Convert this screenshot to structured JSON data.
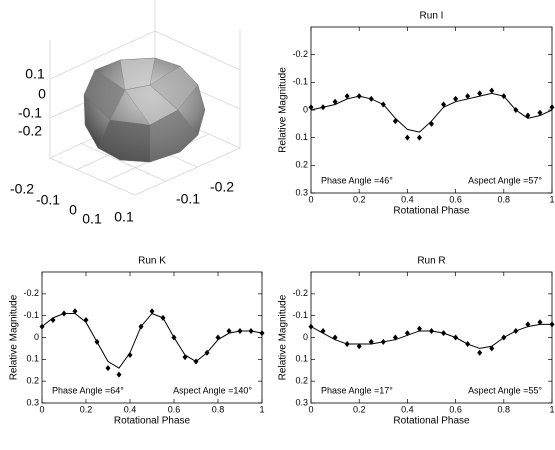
{
  "chart_data": [
    {
      "type": "shape3d",
      "xticks": [
        -0.2,
        -0.1,
        0,
        0.1
      ],
      "yticks": [
        0.1,
        -0.1,
        -0.2
      ],
      "zticks": [
        0.1,
        0,
        -0.1,
        -0.2
      ]
    },
    {
      "type": "lightcurve",
      "title": "Run I",
      "x_label": "Rotational Phase",
      "y_label": "Relative Magnitude",
      "annotations": [
        "Phase Angle =46°",
        "Aspect Angle =57°"
      ],
      "xlim": [
        0,
        1
      ],
      "ylim": [
        0.3,
        -0.3
      ],
      "xticks": [
        0,
        0.2,
        0.4,
        0.6,
        0.8,
        1
      ],
      "yticks": [
        -0.2,
        -0.1,
        0,
        0.1,
        0.2,
        0.3
      ],
      "x": [
        0,
        0.05,
        0.1,
        0.15,
        0.2,
        0.25,
        0.3,
        0.35,
        0.4,
        0.45,
        0.5,
        0.55,
        0.6,
        0.65,
        0.7,
        0.75,
        0.8,
        0.85,
        0.9,
        0.95,
        1
      ],
      "series": [
        {
          "style": "marker",
          "color": "#000000",
          "values": [
            -0.01,
            -0.01,
            -0.03,
            -0.05,
            -0.05,
            -0.04,
            -0.02,
            0.04,
            0.1,
            0.1,
            0.05,
            -0.02,
            -0.04,
            -0.05,
            -0.06,
            -0.07,
            -0.05,
            0.0,
            0.02,
            0.01,
            -0.01
          ]
        },
        {
          "style": "line",
          "color": "#000000",
          "values": [
            0.0,
            -0.01,
            -0.02,
            -0.04,
            -0.05,
            -0.04,
            -0.02,
            0.03,
            0.07,
            0.08,
            0.04,
            -0.01,
            -0.03,
            -0.04,
            -0.05,
            -0.06,
            -0.05,
            0.0,
            0.03,
            0.02,
            0.0
          ]
        }
      ]
    },
    {
      "type": "lightcurve",
      "title": "Run K",
      "x_label": "Rotational Phase",
      "y_label": "Relative Magnitude",
      "annotations": [
        "Phase Angle =64°",
        "Aspect Angle =140°"
      ],
      "xlim": [
        0,
        1
      ],
      "ylim": [
        0.3,
        -0.3
      ],
      "xticks": [
        0,
        0.2,
        0.4,
        0.6,
        0.8,
        1
      ],
      "yticks": [
        -0.2,
        -0.1,
        0,
        0.1,
        0.2,
        0.3
      ],
      "x": [
        0,
        0.05,
        0.1,
        0.15,
        0.2,
        0.25,
        0.3,
        0.35,
        0.4,
        0.45,
        0.5,
        0.55,
        0.6,
        0.65,
        0.7,
        0.75,
        0.8,
        0.85,
        0.9,
        0.95,
        1
      ],
      "series": [
        {
          "style": "marker",
          "color": "#000000",
          "values": [
            -0.05,
            -0.08,
            -0.11,
            -0.12,
            -0.08,
            0.02,
            0.14,
            0.17,
            0.08,
            -0.05,
            -0.12,
            -0.09,
            0.0,
            0.09,
            0.11,
            0.07,
            0.0,
            -0.03,
            -0.03,
            -0.03,
            -0.02
          ]
        },
        {
          "style": "line",
          "color": "#000000",
          "values": [
            -0.05,
            -0.09,
            -0.11,
            -0.11,
            -0.07,
            0.02,
            0.11,
            0.14,
            0.07,
            -0.05,
            -0.11,
            -0.09,
            0.0,
            0.08,
            0.11,
            0.07,
            0.01,
            -0.02,
            -0.03,
            -0.03,
            -0.02
          ]
        }
      ]
    },
    {
      "type": "lightcurve",
      "title": "Run R",
      "x_label": "Rotational Phase",
      "y_label": "Relative Magnitude",
      "annotations": [
        "Phase Angle =17°",
        "Aspect Angle =55°"
      ],
      "xlim": [
        0,
        1
      ],
      "ylim": [
        0.3,
        -0.3
      ],
      "xticks": [
        0,
        0.2,
        0.4,
        0.6,
        0.8,
        1
      ],
      "yticks": [
        -0.2,
        -0.1,
        0,
        0.1,
        0.2,
        0.3
      ],
      "x": [
        0,
        0.05,
        0.1,
        0.15,
        0.2,
        0.25,
        0.3,
        0.35,
        0.4,
        0.45,
        0.5,
        0.55,
        0.6,
        0.65,
        0.7,
        0.75,
        0.8,
        0.85,
        0.9,
        0.95,
        1
      ],
      "series": [
        {
          "style": "marker",
          "color": "#000000",
          "values": [
            -0.05,
            -0.03,
            0.0,
            0.03,
            0.04,
            0.02,
            0.02,
            0.0,
            -0.02,
            -0.04,
            -0.03,
            -0.02,
            0.0,
            0.03,
            0.07,
            0.05,
            0.0,
            -0.03,
            -0.06,
            -0.07,
            -0.06
          ]
        },
        {
          "style": "line",
          "color": "#000000",
          "values": [
            -0.05,
            -0.02,
            0.01,
            0.03,
            0.03,
            0.03,
            0.02,
            0.01,
            -0.01,
            -0.03,
            -0.03,
            -0.02,
            0.0,
            0.03,
            0.05,
            0.04,
            0.0,
            -0.03,
            -0.05,
            -0.06,
            -0.06
          ]
        }
      ]
    }
  ]
}
